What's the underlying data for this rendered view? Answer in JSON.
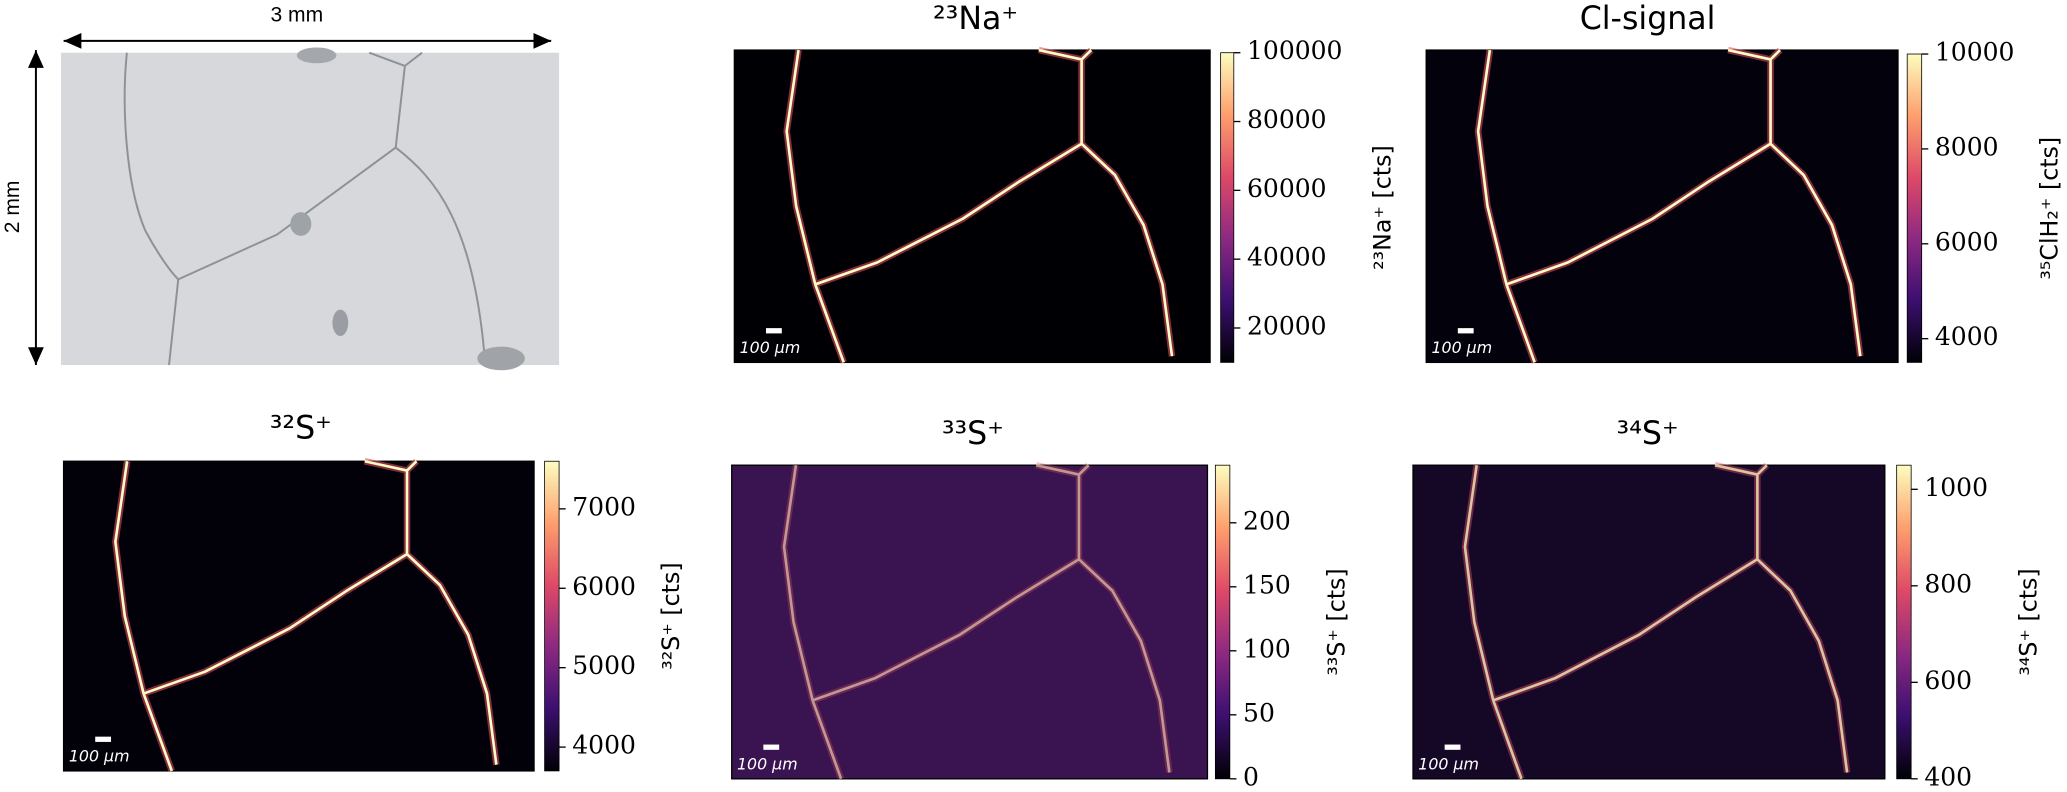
{
  "optical_image": {
    "width_label": "3 mm",
    "height_label": "2 mm"
  },
  "chart_data": [
    {
      "type": "heatmap",
      "title": "²³Na⁺",
      "colorbar_label": "²³Na⁺  [cts]",
      "scale_bar_label": "100 μm",
      "clim": [
        10000,
        100000
      ],
      "cticks": [
        20000,
        40000,
        60000,
        80000,
        100000
      ],
      "colormap": [
        "#000004",
        "#3b0f70",
        "#8c2981",
        "#de4968",
        "#fe9f6d",
        "#fcfdbf"
      ]
    },
    {
      "type": "heatmap",
      "title": "Cl-signal",
      "colorbar_label": "³⁵ClH₂⁺ [cts]",
      "scale_bar_label": "100 μm",
      "clim": [
        3500,
        10000
      ],
      "cticks": [
        4000,
        6000,
        8000,
        10000
      ],
      "colormap": [
        "#000004",
        "#3b0f70",
        "#8c2981",
        "#de4968",
        "#fe9f6d",
        "#fcfdbf"
      ]
    },
    {
      "type": "heatmap",
      "title": "³²S⁺",
      "colorbar_label": "³²S⁺  [cts]",
      "scale_bar_label": "100 μm",
      "clim": [
        3700,
        7600
      ],
      "cticks": [
        4000,
        5000,
        6000,
        7000
      ],
      "colormap": [
        "#000004",
        "#3b0f70",
        "#8c2981",
        "#de4968",
        "#fe9f6d",
        "#fcfdbf"
      ]
    },
    {
      "type": "heatmap",
      "title": "³³S⁺",
      "colorbar_label": "³³S⁺  [cts]",
      "scale_bar_label": "100 μm",
      "clim": [
        0,
        245
      ],
      "cticks": [
        0,
        50,
        100,
        150,
        200
      ],
      "colormap": [
        "#000004",
        "#3b0f70",
        "#8c2981",
        "#de4968",
        "#fe9f6d",
        "#fcfdbf"
      ]
    },
    {
      "type": "heatmap",
      "title": "³⁴S⁺",
      "colorbar_label": "³⁴S⁺  [cts]",
      "scale_bar_label": "100 μm",
      "clim": [
        400,
        1050
      ],
      "cticks": [
        400,
        600,
        800,
        1000
      ],
      "colormap": [
        "#000004",
        "#3b0f70",
        "#8c2981",
        "#de4968",
        "#fe9f6d",
        "#fcfdbf"
      ]
    }
  ]
}
